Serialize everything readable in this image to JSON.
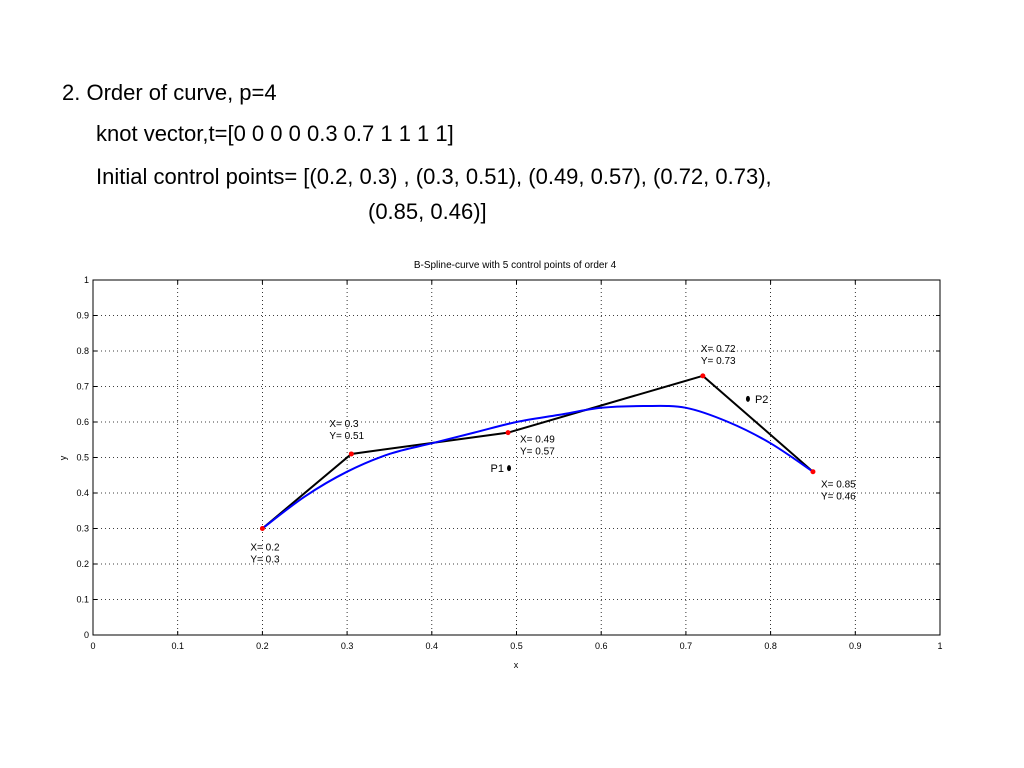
{
  "slide": {
    "line1": "2. Order of curve, p=4",
    "line2": "knot vector,t=[0 0 0 0 0.3 0.7 1 1 1 1]",
    "line3": "Initial control points= [(0.2, 0.3) , (0.3, 0.51), (0.49, 0.57), (0.72, 0.73),",
    "line4": "(0.85, 0.46)]"
  },
  "chart_data": {
    "type": "line",
    "title": "B-Spline-curve with 5 control points of order 4",
    "xlabel": "x",
    "ylabel": "y",
    "xlim": [
      0,
      1
    ],
    "ylim": [
      0,
      1
    ],
    "xticks": [
      "0",
      "0.1",
      "0.2",
      "0.3",
      "0.4",
      "0.5",
      "0.6",
      "0.7",
      "0.8",
      "0.9",
      "1"
    ],
    "yticks": [
      "0",
      "0.1",
      "0.2",
      "0.3",
      "0.4",
      "0.5",
      "0.6",
      "0.7",
      "0.8",
      "0.9",
      "1"
    ],
    "grid": true,
    "colors": {
      "polygon": "#000000",
      "curve": "#0000ff",
      "points": "#ff0000"
    },
    "control_polygon": {
      "x": [
        0.2,
        0.305,
        0.49,
        0.72,
        0.85
      ],
      "y": [
        0.3,
        0.51,
        0.57,
        0.73,
        0.46
      ]
    },
    "curve": {
      "x": [
        0.2,
        0.25,
        0.3,
        0.35,
        0.4,
        0.45,
        0.5,
        0.55,
        0.6,
        0.65,
        0.7,
        0.75,
        0.8,
        0.85
      ],
      "y": [
        0.3,
        0.39,
        0.46,
        0.51,
        0.54,
        0.57,
        0.6,
        0.62,
        0.64,
        0.645,
        0.64,
        0.6,
        0.54,
        0.46
      ]
    },
    "point_labels": [
      {
        "line1": "X= 0.2",
        "line2": "Y= 0.3",
        "anchor_x": 0.2,
        "anchor_y": 0.3
      },
      {
        "line1": "X= 0.3",
        "line2": "Y= 0.51",
        "anchor_x": 0.305,
        "anchor_y": 0.51
      },
      {
        "line1": "X= 0.49",
        "line2": "Y= 0.57",
        "anchor_x": 0.49,
        "anchor_y": 0.57
      },
      {
        "line1": "X= 0.72",
        "line2": "Y= 0.73",
        "anchor_x": 0.72,
        "anchor_y": 0.73
      },
      {
        "line1": "X= 0.85",
        "line2": "Y= 0.46",
        "anchor_x": 0.85,
        "anchor_y": 0.46
      }
    ],
    "annotations": [
      {
        "text": "P1",
        "x": 0.49,
        "y": 0.47
      },
      {
        "text": "P2",
        "x": 0.765,
        "y": 0.665
      }
    ]
  }
}
